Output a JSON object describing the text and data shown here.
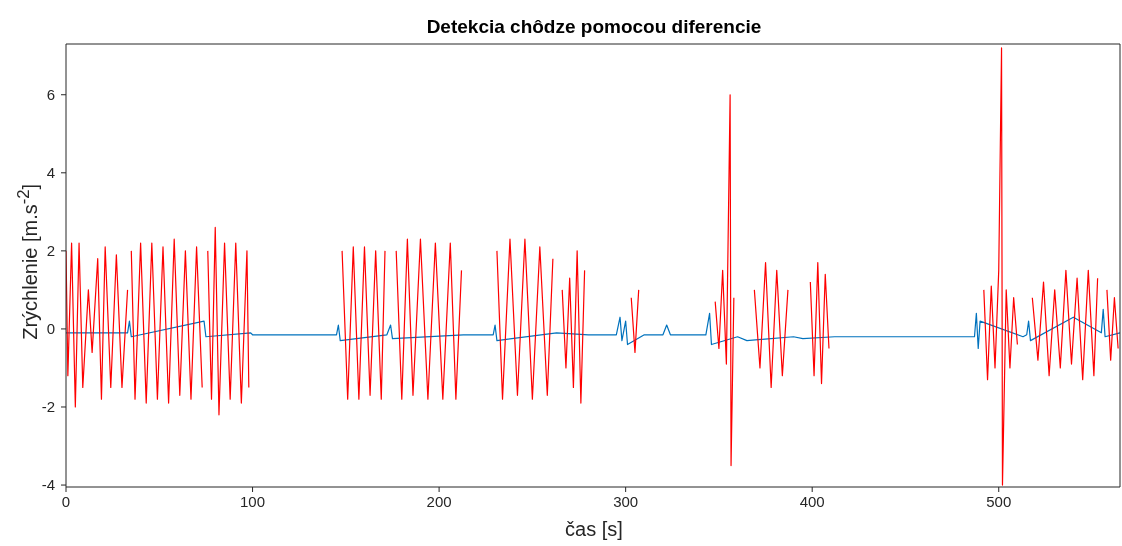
{
  "chart_data": {
    "type": "line",
    "title": "Detekcia chôdze pomocou diferencie",
    "xlabel": "čas [s]",
    "ylabel": "Zrýchlenie [m.s$^{-2}$]",
    "xlim": [
      0,
      565
    ],
    "xticks": [
      0,
      100,
      200,
      300,
      400,
      500
    ],
    "ylim": [
      -4.05,
      7.3
    ],
    "yticks": [
      -4,
      -2,
      0,
      2,
      4,
      6
    ],
    "grid": false,
    "series": [
      {
        "color": "#0072bd",
        "x": [
          0,
          33,
          34,
          35,
          74,
          75,
          99,
          100,
          145,
          146,
          147,
          172,
          174,
          175,
          213,
          229,
          230,
          231,
          263,
          280,
          295,
          297,
          298,
          300,
          301,
          310,
          320,
          322,
          324,
          343,
          345,
          346,
          360,
          365,
          390,
          395,
          412,
          450,
          487,
          488,
          489,
          490,
          513,
          515,
          516,
          517,
          540,
          555,
          556,
          557,
          565
        ],
        "values": [
          -0.1,
          -0.1,
          0.2,
          -0.2,
          0.2,
          -0.2,
          -0.1,
          -0.15,
          -0.15,
          0.1,
          -0.3,
          -0.15,
          0.1,
          -0.25,
          -0.15,
          -0.15,
          0.1,
          -0.3,
          -0.1,
          -0.15,
          -0.15,
          0.3,
          -0.3,
          0.2,
          -0.4,
          -0.15,
          -0.15,
          0.1,
          -0.15,
          -0.15,
          0.4,
          -0.4,
          -0.2,
          -0.3,
          -0.2,
          -0.25,
          -0.2,
          -0.2,
          -0.2,
          0.4,
          -0.5,
          0.2,
          -0.2,
          -0.15,
          0.2,
          -0.3,
          0.3,
          -0.1,
          0.5,
          -0.2,
          -0.1
        ]
      },
      {
        "color": "#ff0000",
        "x": [
          0,
          1,
          3,
          5,
          7,
          9,
          12,
          14,
          17,
          19,
          21,
          24,
          27,
          30,
          33,
          34,
          35,
          37,
          40,
          43,
          46,
          49,
          52,
          55,
          58,
          61,
          64,
          67,
          70,
          73,
          74,
          76,
          78,
          80,
          82,
          85,
          88,
          91,
          94,
          97,
          98,
          100,
          148,
          151,
          154,
          157,
          160,
          163,
          166,
          169,
          171,
          173,
          177,
          180,
          183,
          186,
          190,
          194,
          198,
          202,
          206,
          209,
          212,
          215,
          231,
          234,
          238,
          242,
          246,
          250,
          254,
          258,
          261,
          263,
          266,
          268,
          270,
          272,
          274,
          276,
          278,
          280,
          303,
          305,
          307,
          309,
          348,
          350,
          352,
          354,
          356,
          356.5,
          358,
          360,
          369,
          372,
          375,
          378,
          381,
          384,
          387,
          390,
          399,
          401,
          403,
          405,
          407,
          409,
          412,
          492,
          494,
          496,
          498,
          500,
          501.5,
          502,
          504,
          506,
          508,
          510,
          513,
          518,
          521,
          524,
          527,
          530,
          533,
          536,
          539,
          542,
          545,
          548,
          551,
          553,
          555,
          558,
          560,
          562,
          564
        ],
        "values": [
          2.0,
          -1.2,
          2.2,
          -2.0,
          2.2,
          -1.5,
          1.0,
          -0.6,
          1.8,
          -1.8,
          2.1,
          -1.5,
          1.9,
          -1.5,
          1.0,
          null,
          2.0,
          -1.8,
          2.2,
          -1.9,
          2.2,
          -1.8,
          2.1,
          -1.9,
          2.3,
          -1.7,
          2.0,
          -1.8,
          2.1,
          -1.5,
          null,
          2.0,
          -1.8,
          2.6,
          -2.2,
          2.2,
          -1.8,
          2.2,
          -1.9,
          2.0,
          -1.5,
          null,
          2.0,
          -1.8,
          2.1,
          -1.8,
          2.1,
          -1.7,
          2.0,
          -1.8,
          2.0,
          null,
          2.0,
          -1.8,
          2.3,
          -1.7,
          2.3,
          -1.8,
          2.2,
          -1.8,
          2.2,
          -1.8,
          1.5,
          null,
          2.0,
          -1.8,
          2.3,
          -1.7,
          2.3,
          -1.8,
          2.1,
          -1.7,
          1.8,
          null,
          1.0,
          -1.0,
          1.3,
          -1.5,
          2.0,
          -1.9,
          1.5,
          null,
          0.8,
          -0.6,
          1.0,
          null,
          0.7,
          -0.5,
          1.5,
          -0.9,
          6.0,
          -3.5,
          0.8,
          null,
          1.0,
          -1.0,
          1.7,
          -1.5,
          1.5,
          -1.2,
          1.0,
          null,
          1.2,
          -1.2,
          1.7,
          -1.4,
          1.4,
          -0.5,
          null,
          1.0,
          -1.3,
          1.1,
          -1.0,
          1.5,
          7.2,
          -4.0,
          1.0,
          -1.0,
          0.8,
          -0.4,
          null,
          0.8,
          -0.8,
          1.2,
          -1.2,
          1.0,
          -1.0,
          1.5,
          -0.9,
          1.3,
          -1.3,
          1.5,
          -1.2,
          1.3,
          null,
          1.0,
          -0.8,
          0.8,
          -0.5
        ]
      }
    ]
  }
}
